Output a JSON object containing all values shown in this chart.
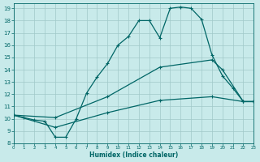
{
  "xlabel": "Humidex (Indice chaleur)",
  "bg_color": "#c8eaea",
  "line_color": "#006666",
  "grid_color": "#a0c8c8",
  "xlim": [
    0,
    23
  ],
  "ylim": [
    8,
    19.4
  ],
  "yticks": [
    8,
    9,
    10,
    11,
    12,
    13,
    14,
    15,
    16,
    17,
    18,
    19
  ],
  "xticks": [
    0,
    1,
    2,
    3,
    4,
    5,
    6,
    7,
    8,
    9,
    10,
    11,
    12,
    13,
    14,
    15,
    16,
    17,
    18,
    19,
    20,
    21,
    22,
    23
  ],
  "curve1_x": [
    0,
    1,
    2,
    3,
    4,
    5,
    6,
    7,
    8,
    9,
    10,
    11,
    12,
    13,
    14,
    15,
    16,
    17,
    18,
    19,
    20,
    21,
    22,
    23
  ],
  "curve1_y": [
    10.3,
    10.1,
    9.9,
    9.8,
    8.5,
    8.5,
    10.0,
    12.1,
    13.4,
    14.5,
    16.0,
    16.7,
    18.0,
    18.0,
    16.6,
    19.0,
    19.1,
    19.0,
    18.1,
    15.2,
    13.5,
    12.5,
    11.4,
    11.4
  ],
  "curve2_x": [
    0,
    4,
    9,
    14,
    19,
    20,
    22,
    23
  ],
  "curve2_y": [
    10.3,
    10.1,
    11.8,
    14.2,
    14.8,
    14.0,
    11.4,
    11.4
  ],
  "curve3_x": [
    0,
    4,
    9,
    14,
    19,
    22,
    23
  ],
  "curve3_y": [
    10.3,
    9.3,
    10.5,
    11.5,
    11.8,
    11.4,
    11.4
  ]
}
